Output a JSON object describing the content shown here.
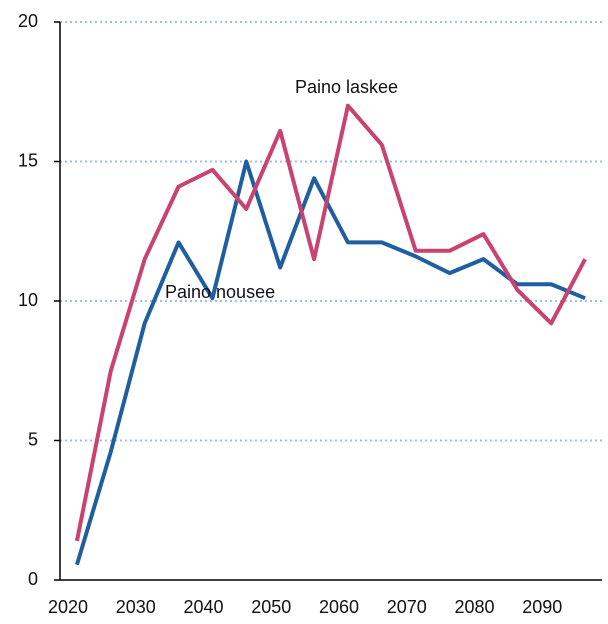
{
  "chart_data": {
    "type": "line",
    "x": [
      2022.5,
      2027.5,
      2032.5,
      2037.5,
      2042.5,
      2047.5,
      2052.5,
      2057.5,
      2062.5,
      2067.5,
      2072.5,
      2077.5,
      2082.5,
      2087.5,
      2092.5,
      2097.5
    ],
    "series": [
      {
        "name": "Paino nousee",
        "color": "#1f5f9f",
        "values": [
          0.55,
          4.6,
          9.2,
          12.1,
          10.1,
          15.0,
          11.2,
          14.4,
          12.1,
          12.1,
          11.6,
          11.0,
          11.5,
          10.6,
          10.6,
          10.1
        ]
      },
      {
        "name": "Paino laskee",
        "color": "#c8436f",
        "values": [
          1.4,
          7.5,
          11.5,
          14.1,
          14.7,
          13.3,
          16.1,
          11.5,
          17.0,
          15.6,
          11.8,
          11.8,
          12.4,
          10.4,
          9.2,
          11.5
        ]
      }
    ],
    "xlim": [
      2020,
      2100
    ],
    "xticks": [
      2020,
      2030,
      2040,
      2050,
      2060,
      2070,
      2080,
      2090
    ],
    "ylim": [
      0,
      20
    ],
    "yticks": [
      0,
      5,
      10,
      15,
      20
    ],
    "grid": true
  }
}
